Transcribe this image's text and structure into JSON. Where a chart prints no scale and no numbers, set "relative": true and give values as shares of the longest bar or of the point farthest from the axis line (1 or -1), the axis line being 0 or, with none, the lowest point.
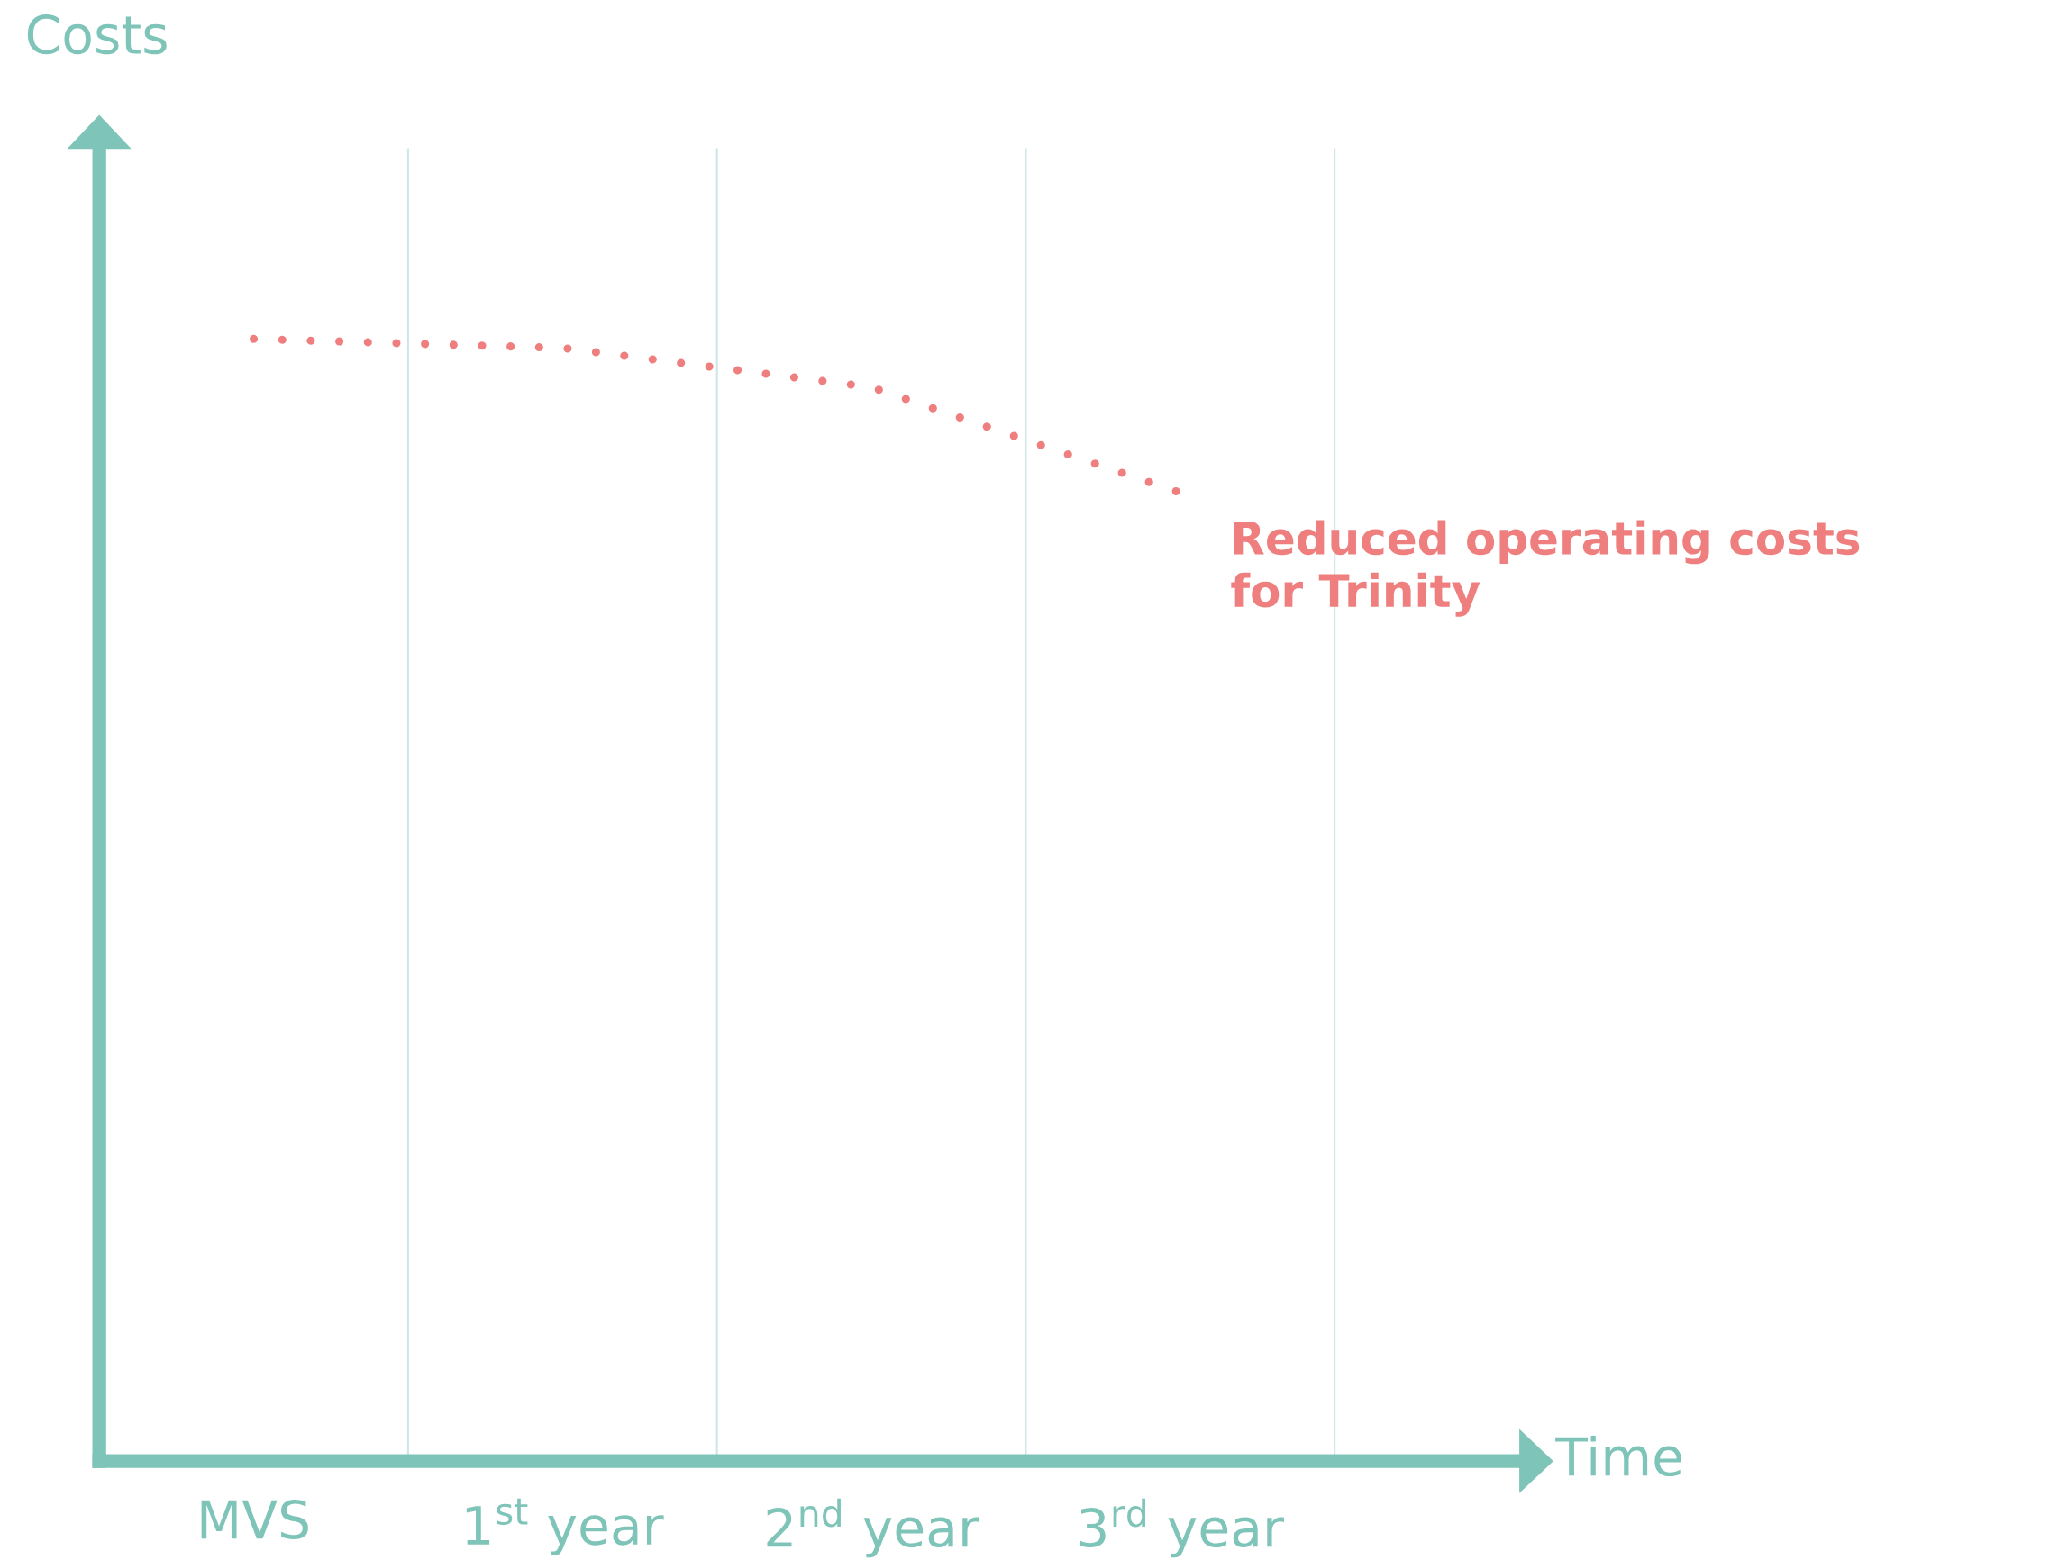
{
  "chart_data": {
    "type": "line",
    "relative": true,
    "xlabel": "Time",
    "annotations": [
      "Costs"
    ],
    "categories": [
      "MVS",
      "1$^{st}$ year",
      "2$^{nd}$ year",
      "3$^{rd}$ year"
    ],
    "line_style": "dotted",
    "grid": false,
    "series": [
      {
        "name": "Reduced operating costs for Trinity",
        "color": "#ef7f7f",
        "values": [
          1,
          0.992,
          0.957,
          0.863
        ]
      }
    ]
  }
}
